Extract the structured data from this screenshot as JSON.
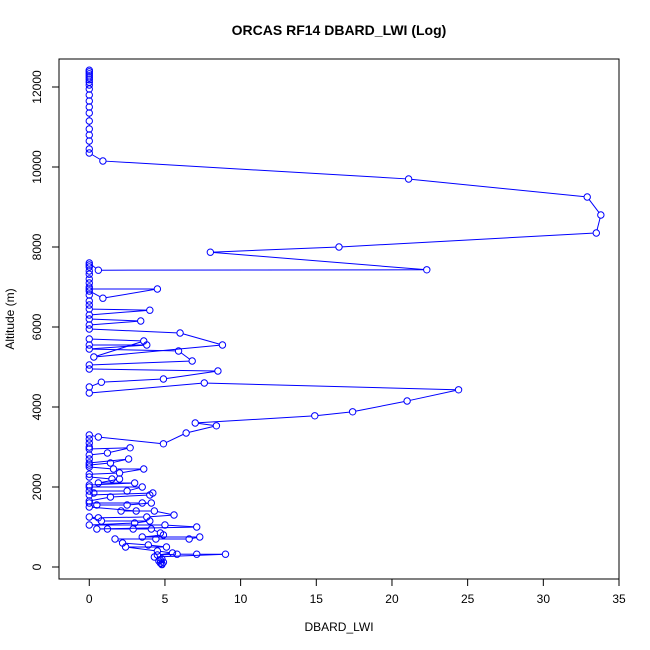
{
  "chart_data": {
    "type": "line",
    "title": "ORCAS RF14 DBARD_LWI (Log)",
    "xlabel": "DBARD_LWI",
    "ylabel": "Altitude (m)",
    "xlim": [
      -2,
      35
    ],
    "ylim": [
      -300,
      12700
    ],
    "xticks": [
      0,
      5,
      10,
      15,
      20,
      25,
      30,
      35
    ],
    "yticks": [
      0,
      2000,
      4000,
      6000,
      8000,
      10000,
      12000
    ],
    "xtick_labels": [
      "0",
      "5",
      "10",
      "15",
      "20",
      "25",
      "30",
      "35"
    ],
    "ytick_labels": [
      "0",
      "2000",
      "4000",
      "6000",
      "8000",
      "10000",
      "12000"
    ],
    "grid": false,
    "legend": "none",
    "series_color": "#0000ff",
    "marker": "open-circle",
    "series": [
      {
        "points": [
          [
            0,
            12420
          ],
          [
            0,
            12380
          ],
          [
            0,
            12330
          ],
          [
            0,
            12280
          ],
          [
            0,
            12230
          ],
          [
            0,
            12180
          ],
          [
            0,
            12120
          ],
          [
            0,
            12050
          ],
          [
            0,
            11950
          ],
          [
            0,
            11800
          ],
          [
            0,
            11650
          ],
          [
            0,
            11500
          ],
          [
            0,
            11350
          ],
          [
            0,
            11150
          ],
          [
            0,
            10950
          ],
          [
            0,
            10800
          ],
          [
            0,
            10650
          ],
          [
            0,
            10450
          ],
          [
            0,
            10350
          ],
          [
            0.9,
            10150
          ],
          [
            21.1,
            9700
          ],
          [
            32.9,
            9250
          ],
          [
            33.8,
            8800
          ],
          [
            33.5,
            8350
          ],
          [
            16.5,
            8000
          ],
          [
            8.0,
            7870
          ],
          [
            22.3,
            7430
          ],
          [
            0.6,
            7420
          ],
          [
            0,
            7600
          ],
          [
            0,
            7550
          ],
          [
            0,
            7500
          ],
          [
            0,
            7400
          ],
          [
            0,
            7320
          ],
          [
            0,
            7200
          ],
          [
            0,
            7100
          ],
          [
            0,
            7000
          ],
          [
            0,
            6950
          ],
          [
            4.5,
            6950
          ],
          [
            0.9,
            6720
          ],
          [
            0,
            6900
          ],
          [
            0,
            6800
          ],
          [
            0,
            6650
          ],
          [
            0,
            6550
          ],
          [
            0,
            6450
          ],
          [
            4.0,
            6420
          ],
          [
            0,
            6300
          ],
          [
            0,
            6200
          ],
          [
            3.4,
            6150
          ],
          [
            0,
            6050
          ],
          [
            0,
            5950
          ],
          [
            6.0,
            5850
          ],
          [
            8.8,
            5550
          ],
          [
            0.3,
            5250
          ],
          [
            3.6,
            5650
          ],
          [
            0,
            5700
          ],
          [
            0,
            5550
          ],
          [
            3.8,
            5550
          ],
          [
            0,
            5450
          ],
          [
            5.9,
            5400
          ],
          [
            6.8,
            5150
          ],
          [
            0,
            5050
          ],
          [
            0,
            4950
          ],
          [
            8.5,
            4900
          ],
          [
            4.9,
            4700
          ],
          [
            0.8,
            4620
          ],
          [
            0,
            4500
          ],
          [
            0,
            4350
          ],
          [
            7.6,
            4600
          ],
          [
            24.4,
            4430
          ],
          [
            21.0,
            4150
          ],
          [
            17.4,
            3880
          ],
          [
            14.9,
            3780
          ],
          [
            7.0,
            3600
          ],
          [
            8.4,
            3530
          ],
          [
            6.4,
            3350
          ],
          [
            4.9,
            3080
          ],
          [
            0.6,
            3250
          ],
          [
            0,
            3300
          ],
          [
            0,
            3200
          ],
          [
            0,
            3100
          ],
          [
            0,
            3000
          ],
          [
            0,
            2950
          ],
          [
            2.7,
            2980
          ],
          [
            1.2,
            2850
          ],
          [
            0,
            2800
          ],
          [
            0,
            2700
          ],
          [
            0,
            2600
          ],
          [
            2.6,
            2700
          ],
          [
            1.4,
            2600
          ],
          [
            0,
            2550
          ],
          [
            0,
            2500
          ],
          [
            1.6,
            2450
          ],
          [
            3.6,
            2450
          ],
          [
            2.0,
            2350
          ],
          [
            0,
            2320
          ],
          [
            0,
            2250
          ],
          [
            1.5,
            2200
          ],
          [
            2.0,
            2200
          ],
          [
            0.6,
            2100
          ],
          [
            3.0,
            2100
          ],
          [
            0,
            2050
          ],
          [
            0,
            2000
          ],
          [
            3.5,
            2000
          ],
          [
            2.5,
            1900
          ],
          [
            0,
            1900
          ],
          [
            0.3,
            1850
          ],
          [
            0,
            1800
          ],
          [
            4.2,
            1850
          ],
          [
            4.0,
            1800
          ],
          [
            1.4,
            1750
          ],
          [
            0,
            1650
          ],
          [
            0,
            1600
          ],
          [
            3.5,
            1600
          ],
          [
            4.1,
            1600
          ],
          [
            2.5,
            1550
          ],
          [
            0.5,
            1550
          ],
          [
            0,
            1500
          ],
          [
            3.1,
            1400
          ],
          [
            2.1,
            1400
          ],
          [
            4.3,
            1400
          ],
          [
            5.6,
            1300
          ],
          [
            3.8,
            1250
          ],
          [
            0.6,
            1230
          ],
          [
            0,
            1250
          ],
          [
            0.8,
            1150
          ],
          [
            4.0,
            1150
          ],
          [
            3.0,
            1100
          ],
          [
            0,
            1050
          ],
          [
            5.0,
            1050
          ],
          [
            7.1,
            1000
          ],
          [
            0.5,
            950
          ],
          [
            1.2,
            950
          ],
          [
            2.9,
            950
          ],
          [
            4.1,
            950
          ],
          [
            4.7,
            850
          ],
          [
            4.9,
            800
          ],
          [
            3.5,
            750
          ],
          [
            7.3,
            750
          ],
          [
            6.6,
            700
          ],
          [
            4.4,
            700
          ],
          [
            1.7,
            700
          ],
          [
            2.2,
            600
          ],
          [
            3.9,
            550
          ],
          [
            5.1,
            500
          ],
          [
            2.4,
            500
          ],
          [
            4.5,
            400
          ],
          [
            5.5,
            350
          ],
          [
            4.5,
            300
          ],
          [
            5.8,
            320
          ],
          [
            7.1,
            320
          ],
          [
            9.0,
            320
          ],
          [
            4.3,
            250
          ],
          [
            4.8,
            200
          ],
          [
            4.7,
            170
          ],
          [
            4.6,
            150
          ],
          [
            4.9,
            120
          ],
          [
            4.7,
            100
          ],
          [
            4.8,
            80
          ],
          [
            4.8,
            60
          ]
        ]
      }
    ]
  }
}
